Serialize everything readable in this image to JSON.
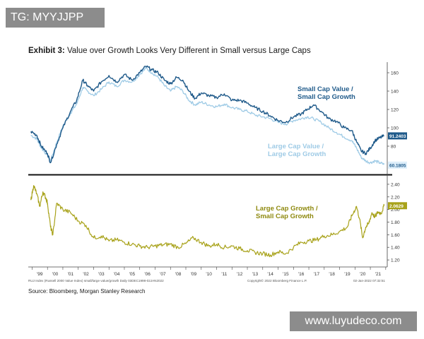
{
  "watermark_top": "TG: MYYJJPP",
  "watermark_bottom": "www.luyudeco.com",
  "exhibit": {
    "label": "Exhibit 3:",
    "title": "Value over Growth Looks Very Different in Small versus Large Caps"
  },
  "footer": {
    "left_note": "RUJ Index (Russell 2000 Value Index) small/large value/growth  Daily 03DEC1998-02JAN2022",
    "center_note": "Copyright© 2022 Bloomberg Finance L.P.",
    "right_note": "02-Jan-2022 07:32:51",
    "source": "Source: Bloomberg, Morgan Stanley Research"
  },
  "colors": {
    "small_cap": "#1f5a8a",
    "large_cap": "#9fcbe6",
    "growth_ratio": "#a8a21a",
    "divider": "#111111",
    "axis_text": "#333333"
  },
  "chart_data": [
    {
      "type": "line",
      "panel": "top",
      "ylim": [
        50,
        170
      ],
      "yticks": [
        "80",
        "100",
        "120",
        "140",
        "160"
      ],
      "series": [
        {
          "name": "Small Cap Value / Small Cap Growth",
          "label_lines": [
            "Small Cap Value /",
            "Small Cap Growth"
          ],
          "last_value_label": "91.2403",
          "x": [
            1998.92,
            1999.3,
            1999.6,
            2000.0,
            2000.2,
            2000.6,
            2001.0,
            2001.5,
            2001.9,
            2002.3,
            2002.6,
            2003.0,
            2003.5,
            2004.0,
            2004.5,
            2005.0,
            2005.5,
            2006.0,
            2006.4,
            2006.8,
            2007.2,
            2007.6,
            2008.0,
            2008.4,
            2008.8,
            2009.2,
            2009.6,
            2010.0,
            2010.5,
            2011.0,
            2011.5,
            2012.0,
            2012.5,
            2013.0,
            2013.5,
            2014.0,
            2014.5,
            2015.0,
            2015.5,
            2016.0,
            2016.5,
            2016.9,
            2017.3,
            2017.8,
            2018.3,
            2018.8,
            2019.3,
            2019.8,
            2020.1,
            2020.4,
            2020.7,
            2021.0,
            2021.3,
            2021.6,
            2021.9
          ],
          "values": [
            96,
            92,
            80,
            72,
            62,
            82,
            100,
            118,
            130,
            152,
            146,
            140,
            150,
            157,
            150,
            158,
            152,
            160,
            167,
            163,
            160,
            152,
            148,
            155,
            152,
            140,
            132,
            138,
            135,
            133,
            137,
            130,
            130,
            127,
            122,
            118,
            113,
            108,
            106,
            112,
            115,
            120,
            125,
            118,
            110,
            107,
            100,
            97,
            85,
            75,
            72,
            78,
            86,
            89,
            91.24
          ]
        },
        {
          "name": "Large Cap Value / Large Cap Growth",
          "label_lines": [
            "Large Cap Value /",
            "Large Cap Growth"
          ],
          "last_value_label": "60.1805",
          "x": [
            1998.92,
            1999.3,
            1999.6,
            2000.0,
            2000.2,
            2000.6,
            2001.0,
            2001.5,
            2001.9,
            2002.3,
            2002.6,
            2003.0,
            2003.5,
            2004.0,
            2004.5,
            2005.0,
            2005.5,
            2006.0,
            2006.4,
            2006.8,
            2007.2,
            2007.6,
            2008.0,
            2008.4,
            2008.8,
            2009.2,
            2009.6,
            2010.0,
            2010.5,
            2011.0,
            2011.5,
            2012.0,
            2012.5,
            2013.0,
            2013.5,
            2014.0,
            2014.5,
            2015.0,
            2015.5,
            2016.0,
            2016.5,
            2016.9,
            2017.3,
            2017.8,
            2018.3,
            2018.8,
            2019.3,
            2019.8,
            2020.1,
            2020.4,
            2020.7,
            2021.0,
            2021.3,
            2021.6,
            2021.9
          ],
          "values": [
            92,
            88,
            78,
            70,
            64,
            84,
            102,
            116,
            126,
            144,
            140,
            135,
            142,
            150,
            145,
            152,
            150,
            158,
            165,
            160,
            155,
            146,
            140,
            145,
            140,
            130,
            125,
            128,
            125,
            123,
            126,
            122,
            120,
            118,
            114,
            112,
            110,
            106,
            104,
            108,
            110,
            112,
            110,
            106,
            100,
            95,
            90,
            86,
            78,
            68,
            64,
            62,
            64,
            62,
            60.18
          ]
        }
      ]
    },
    {
      "type": "line",
      "panel": "bottom",
      "ylim": [
        1.1,
        2.5
      ],
      "yticks": [
        "1.20",
        "1.40",
        "1.60",
        "1.80",
        "2.00",
        "2.20",
        "2.40"
      ],
      "series": [
        {
          "name": "Large Cap Growth / Small Cap Growth",
          "label_lines": [
            "Large Cap Growth /",
            "Small Cap Growth"
          ],
          "last_value_label": "2.0629",
          "x": [
            1998.92,
            1999.1,
            1999.3,
            1999.5,
            1999.7,
            1999.9,
            2000.0,
            2000.2,
            2000.35,
            2000.6,
            2001.0,
            2001.5,
            2002.0,
            2002.5,
            2003.0,
            2003.5,
            2004.0,
            2004.5,
            2005.0,
            2005.5,
            2006.0,
            2006.5,
            2007.0,
            2007.5,
            2008.0,
            2008.5,
            2009.0,
            2009.5,
            2010.0,
            2010.5,
            2011.0,
            2011.5,
            2012.0,
            2012.5,
            2013.0,
            2013.5,
            2014.0,
            2014.5,
            2015.0,
            2015.5,
            2016.0,
            2016.5,
            2017.0,
            2017.5,
            2018.0,
            2018.5,
            2019.0,
            2019.5,
            2019.8,
            2020.1,
            2020.3,
            2020.5,
            2020.7,
            2020.9,
            2021.1,
            2021.3,
            2021.5,
            2021.7,
            2021.9
          ],
          "values": [
            2.15,
            2.38,
            2.25,
            2.05,
            2.28,
            2.18,
            2.1,
            1.72,
            1.6,
            2.1,
            2.0,
            1.95,
            1.82,
            1.75,
            1.55,
            1.58,
            1.5,
            1.52,
            1.48,
            1.45,
            1.42,
            1.4,
            1.42,
            1.44,
            1.45,
            1.4,
            1.46,
            1.55,
            1.48,
            1.42,
            1.45,
            1.4,
            1.42,
            1.38,
            1.35,
            1.32,
            1.3,
            1.28,
            1.33,
            1.3,
            1.4,
            1.48,
            1.5,
            1.52,
            1.58,
            1.6,
            1.65,
            1.72,
            1.9,
            2.05,
            1.85,
            1.55,
            1.72,
            1.78,
            1.95,
            1.88,
            1.96,
            1.94,
            2.06
          ]
        }
      ]
    },
    {
      "type": "axis",
      "panel": "x-axis",
      "xlim": [
        1998.75,
        2022.1
      ],
      "ticks": [
        {
          "label": "'99",
          "x": 1999.5
        },
        {
          "label": "'00",
          "x": 2000.5
        },
        {
          "label": "'01",
          "x": 2001.5
        },
        {
          "label": "'02",
          "x": 2002.5
        },
        {
          "label": "'03",
          "x": 2003.5
        },
        {
          "label": "'04",
          "x": 2004.5
        },
        {
          "label": "'05",
          "x": 2005.5
        },
        {
          "label": "'06",
          "x": 2006.5
        },
        {
          "label": "'07",
          "x": 2007.5
        },
        {
          "label": "'08",
          "x": 2008.5
        },
        {
          "label": "'09",
          "x": 2009.5
        },
        {
          "label": "'10",
          "x": 2010.5
        },
        {
          "label": "'11",
          "x": 2011.5
        },
        {
          "label": "'12",
          "x": 2012.5
        },
        {
          "label": "'13",
          "x": 2013.5
        },
        {
          "label": "'14",
          "x": 2014.5
        },
        {
          "label": "'15",
          "x": 2015.5
        },
        {
          "label": "'16",
          "x": 2016.5
        },
        {
          "label": "'17",
          "x": 2017.5
        },
        {
          "label": "'18",
          "x": 2018.5
        },
        {
          "label": "'19",
          "x": 2019.5
        },
        {
          "label": "'20",
          "x": 2020.5
        },
        {
          "label": "'21",
          "x": 2021.5
        }
      ]
    }
  ]
}
